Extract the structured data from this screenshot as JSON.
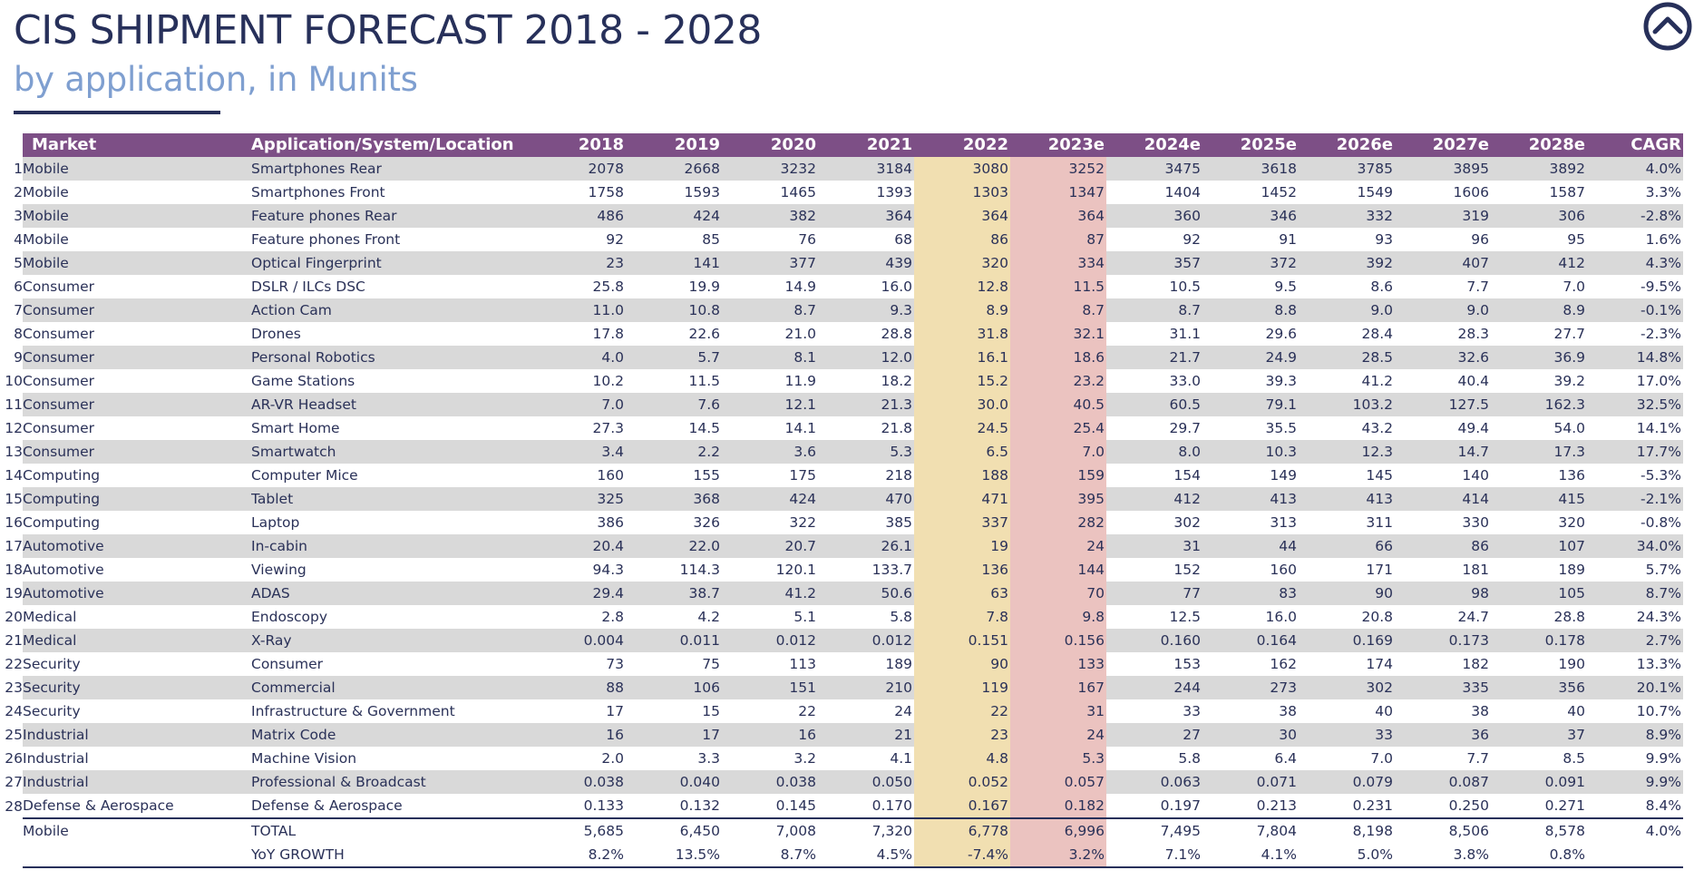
{
  "header": {
    "title": "CIS SHIPMENT FORECAST 2018 - 2028",
    "subtitle": "by application, in Munits"
  },
  "nav": {
    "icon": "chevron-up-circle-icon"
  },
  "colors": {
    "header_bg": "#7d4f86",
    "stripe": "#d9d9d9",
    "col_2022": "#f1dfb1",
    "col_2023e": "#ebc3c0",
    "title": "#27305a",
    "subtitle": "#7f9fd0"
  },
  "table": {
    "columns": [
      "Market",
      "Application/System/Location",
      "2018",
      "2019",
      "2020",
      "2021",
      "2022",
      "2023e",
      "2024e",
      "2025e",
      "2026e",
      "2027e",
      "2028e",
      "CAGR"
    ],
    "rows": [
      {
        "n": "1",
        "market": "Mobile",
        "app": "Smartphones Rear",
        "v": [
          "2078",
          "2668",
          "3232",
          "3184",
          "3080",
          "3252",
          "3475",
          "3618",
          "3785",
          "3895",
          "3892",
          "4.0%"
        ]
      },
      {
        "n": "2",
        "market": "Mobile",
        "app": "Smartphones Front",
        "v": [
          "1758",
          "1593",
          "1465",
          "1393",
          "1303",
          "1347",
          "1404",
          "1452",
          "1549",
          "1606",
          "1587",
          "3.3%"
        ]
      },
      {
        "n": "3",
        "market": "Mobile",
        "app": "Feature phones Rear",
        "v": [
          "486",
          "424",
          "382",
          "364",
          "364",
          "364",
          "360",
          "346",
          "332",
          "319",
          "306",
          "-2.8%"
        ]
      },
      {
        "n": "4",
        "market": "Mobile",
        "app": "Feature phones Front",
        "v": [
          "92",
          "85",
          "76",
          "68",
          "86",
          "87",
          "92",
          "91",
          "93",
          "96",
          "95",
          "1.6%"
        ]
      },
      {
        "n": "5",
        "market": "Mobile",
        "app": "Optical Fingerprint",
        "v": [
          "23",
          "141",
          "377",
          "439",
          "320",
          "334",
          "357",
          "372",
          "392",
          "407",
          "412",
          "4.3%"
        ]
      },
      {
        "n": "6",
        "market": "Consumer",
        "app": "DSLR / ILCs DSC",
        "v": [
          "25.8",
          "19.9",
          "14.9",
          "16.0",
          "12.8",
          "11.5",
          "10.5",
          "9.5",
          "8.6",
          "7.7",
          "7.0",
          "-9.5%"
        ]
      },
      {
        "n": "7",
        "market": "Consumer",
        "app": "Action Cam",
        "v": [
          "11.0",
          "10.8",
          "8.7",
          "9.3",
          "8.9",
          "8.7",
          "8.7",
          "8.8",
          "9.0",
          "9.0",
          "8.9",
          "-0.1%"
        ]
      },
      {
        "n": "8",
        "market": "Consumer",
        "app": "Drones",
        "v": [
          "17.8",
          "22.6",
          "21.0",
          "28.8",
          "31.8",
          "32.1",
          "31.1",
          "29.6",
          "28.4",
          "28.3",
          "27.7",
          "-2.3%"
        ]
      },
      {
        "n": "9",
        "market": "Consumer",
        "app": "Personal Robotics",
        "v": [
          "4.0",
          "5.7",
          "8.1",
          "12.0",
          "16.1",
          "18.6",
          "21.7",
          "24.9",
          "28.5",
          "32.6",
          "36.9",
          "14.8%"
        ]
      },
      {
        "n": "10",
        "market": "Consumer",
        "app": "Game Stations",
        "v": [
          "10.2",
          "11.5",
          "11.9",
          "18.2",
          "15.2",
          "23.2",
          "33.0",
          "39.3",
          "41.2",
          "40.4",
          "39.2",
          "17.0%"
        ]
      },
      {
        "n": "11",
        "market": "Consumer",
        "app": "AR-VR Headset",
        "v": [
          "7.0",
          "7.6",
          "12.1",
          "21.3",
          "30.0",
          "40.5",
          "60.5",
          "79.1",
          "103.2",
          "127.5",
          "162.3",
          "32.5%"
        ]
      },
      {
        "n": "12",
        "market": "Consumer",
        "app": "Smart Home",
        "v": [
          "27.3",
          "14.5",
          "14.1",
          "21.8",
          "24.5",
          "25.4",
          "29.7",
          "35.5",
          "43.2",
          "49.4",
          "54.0",
          "14.1%"
        ]
      },
      {
        "n": "13",
        "market": "Consumer",
        "app": "Smartwatch",
        "v": [
          "3.4",
          "2.2",
          "3.6",
          "5.3",
          "6.5",
          "7.0",
          "8.0",
          "10.3",
          "12.3",
          "14.7",
          "17.3",
          "17.7%"
        ]
      },
      {
        "n": "14",
        "market": "Computing",
        "app": "Computer Mice",
        "v": [
          "160",
          "155",
          "175",
          "218",
          "188",
          "159",
          "154",
          "149",
          "145",
          "140",
          "136",
          "-5.3%"
        ]
      },
      {
        "n": "15",
        "market": "Computing",
        "app": "Tablet",
        "v": [
          "325",
          "368",
          "424",
          "470",
          "471",
          "395",
          "412",
          "413",
          "413",
          "414",
          "415",
          "-2.1%"
        ]
      },
      {
        "n": "16",
        "market": "Computing",
        "app": "Laptop",
        "v": [
          "386",
          "326",
          "322",
          "385",
          "337",
          "282",
          "302",
          "313",
          "311",
          "330",
          "320",
          "-0.8%"
        ]
      },
      {
        "n": "17",
        "market": "Automotive",
        "app": "In-cabin",
        "v": [
          "20.4",
          "22.0",
          "20.7",
          "26.1",
          "19",
          "24",
          "31",
          "44",
          "66",
          "86",
          "107",
          "34.0%"
        ]
      },
      {
        "n": "18",
        "market": "Automotive",
        "app": "Viewing",
        "v": [
          "94.3",
          "114.3",
          "120.1",
          "133.7",
          "136",
          "144",
          "152",
          "160",
          "171",
          "181",
          "189",
          "5.7%"
        ]
      },
      {
        "n": "19",
        "market": "Automotive",
        "app": "ADAS",
        "v": [
          "29.4",
          "38.7",
          "41.2",
          "50.6",
          "63",
          "70",
          "77",
          "83",
          "90",
          "98",
          "105",
          "8.7%"
        ]
      },
      {
        "n": "20",
        "market": "Medical",
        "app": "Endoscopy",
        "v": [
          "2.8",
          "4.2",
          "5.1",
          "5.8",
          "7.8",
          "9.8",
          "12.5",
          "16.0",
          "20.8",
          "24.7",
          "28.8",
          "24.3%"
        ]
      },
      {
        "n": "21",
        "market": "Medical",
        "app": "X-Ray",
        "v": [
          "0.004",
          "0.011",
          "0.012",
          "0.012",
          "0.151",
          "0.156",
          "0.160",
          "0.164",
          "0.169",
          "0.173",
          "0.178",
          "2.7%"
        ]
      },
      {
        "n": "22",
        "market": "Security",
        "app": "Consumer",
        "v": [
          "73",
          "75",
          "113",
          "189",
          "90",
          "133",
          "153",
          "162",
          "174",
          "182",
          "190",
          "13.3%"
        ]
      },
      {
        "n": "23",
        "market": "Security",
        "app": "Commercial",
        "v": [
          "88",
          "106",
          "151",
          "210",
          "119",
          "167",
          "244",
          "273",
          "302",
          "335",
          "356",
          "20.1%"
        ]
      },
      {
        "n": "24",
        "market": "Security",
        "app": "Infrastructure & Government",
        "v": [
          "17",
          "15",
          "22",
          "24",
          "22",
          "31",
          "33",
          "38",
          "40",
          "38",
          "40",
          "10.7%"
        ]
      },
      {
        "n": "25",
        "market": "Industrial",
        "app": "Matrix Code",
        "v": [
          "16",
          "17",
          "16",
          "21",
          "23",
          "24",
          "27",
          "30",
          "33",
          "36",
          "37",
          "8.9%"
        ]
      },
      {
        "n": "26",
        "market": "Industrial",
        "app": "Machine Vision",
        "v": [
          "2.0",
          "3.3",
          "3.2",
          "4.1",
          "4.8",
          "5.3",
          "5.8",
          "6.4",
          "7.0",
          "7.7",
          "8.5",
          "9.9%"
        ]
      },
      {
        "n": "27",
        "market": "Industrial",
        "app": "Professional & Broadcast",
        "v": [
          "0.038",
          "0.040",
          "0.038",
          "0.050",
          "0.052",
          "0.057",
          "0.063",
          "0.071",
          "0.079",
          "0.087",
          "0.091",
          "9.9%"
        ]
      },
      {
        "n": "28",
        "market": "Defense & Aerospace",
        "app": "Defense & Aerospace",
        "v": [
          "0.133",
          "0.132",
          "0.145",
          "0.170",
          "0.167",
          "0.182",
          "0.197",
          "0.213",
          "0.231",
          "0.250",
          "0.271",
          "8.4%"
        ]
      }
    ],
    "total": {
      "market": "Mobile",
      "app": "TOTAL",
      "v": [
        "5,685",
        "6,450",
        "7,008",
        "7,320",
        "6,778",
        "6,996",
        "7,495",
        "7,804",
        "8,198",
        "8,506",
        "8,578",
        "4.0%"
      ]
    },
    "yoy": {
      "market": "",
      "app": "YoY GROWTH",
      "v": [
        "8.2%",
        "13.5%",
        "8.7%",
        "4.5%",
        "-7.4%",
        "3.2%",
        "7.1%",
        "4.1%",
        "5.0%",
        "3.8%",
        "0.8%",
        ""
      ]
    }
  }
}
